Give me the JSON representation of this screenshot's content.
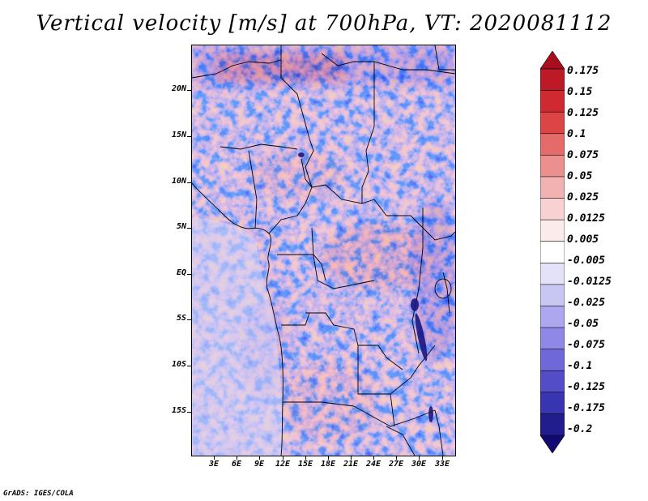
{
  "title": "Vertical velocity [m/s] at 700hPa, VT: 2020081112",
  "lat_labels": [
    "20N",
    "15N",
    "10N",
    "5N",
    "EQ",
    "5S",
    "10S",
    "15S"
  ],
  "lon_labels": [
    "3E",
    "6E",
    "9E",
    "12E",
    "15E",
    "18E",
    "21E",
    "24E",
    "27E",
    "30E",
    "33E"
  ],
  "colorbar": {
    "labels": [
      "0.175",
      "0.15",
      "0.125",
      "0.1",
      "0.075",
      "0.05",
      "0.025",
      "0.0125",
      "0.005",
      "-0.005",
      "-0.0125",
      "-0.025",
      "-0.05",
      "-0.075",
      "-0.1",
      "-0.125",
      "-0.175",
      "-0.2"
    ],
    "colors": [
      "#a80f1e",
      "#bc1a26",
      "#cf2a31",
      "#dd4545",
      "#e56a6a",
      "#ec8f8f",
      "#f3b2b2",
      "#f8d2d2",
      "#fcebeb",
      "#ffffff",
      "#e3e2f8",
      "#cac6f3",
      "#aca7ee",
      "#8f88e6",
      "#6f68d8",
      "#534ec8",
      "#3935b0",
      "#211d8c",
      "#120a72"
    ]
  },
  "footer": "GrADS: IGES/COLA"
}
